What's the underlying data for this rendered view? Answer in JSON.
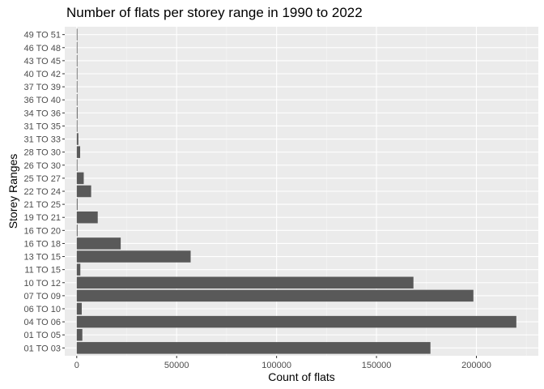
{
  "chart_data": {
    "type": "bar",
    "orientation": "horizontal",
    "title": "Number of flats per storey range in 1990 to 2022",
    "xlabel": "Count of flats",
    "ylabel": "Storey Ranges",
    "xlim": [
      -6000,
      231000
    ],
    "xticks": [
      0,
      50000,
      100000,
      150000,
      200000
    ],
    "xtick_labels": [
      "0",
      "50000",
      "100000",
      "150000",
      "200000"
    ],
    "grid": true,
    "bar_color": "#595959",
    "panel_color": "#ebebeb",
    "categories": [
      "01 TO 03",
      "01 TO 05",
      "04 TO 06",
      "06 TO 10",
      "07 TO 09",
      "10 TO 12",
      "11 TO 15",
      "13 TO 15",
      "16 TO 18",
      "16 TO 20",
      "19 TO 21",
      "21 TO 25",
      "22 TO 24",
      "25 TO 27",
      "26 TO 30",
      "28 TO 30",
      "31 TO 33",
      "31 TO 35",
      "34 TO 36",
      "36 TO 40",
      "37 TO 39",
      "40 TO 42",
      "43 TO 45",
      "46 TO 48",
      "49 TO 51"
    ],
    "values": [
      177000,
      2800,
      220000,
      2500,
      198500,
      168500,
      1800,
      57000,
      22000,
      400,
      10500,
      400,
      7200,
      3500,
      200,
      1700,
      800,
      100,
      400,
      100,
      200,
      150,
      120,
      100,
      50
    ]
  }
}
